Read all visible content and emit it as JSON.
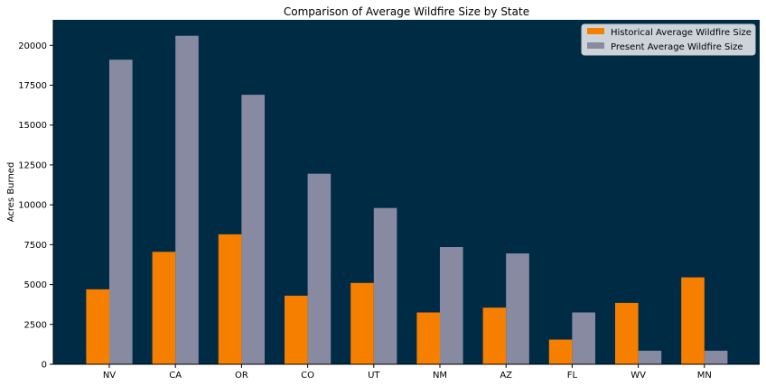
{
  "chart_data": {
    "type": "bar",
    "title": "Comparison of Average Wildfire Size by State",
    "xlabel": "",
    "ylabel": "Acres Burned",
    "categories": [
      "NV",
      "CA",
      "OR",
      "CO",
      "UT",
      "NM",
      "AZ",
      "FL",
      "WV",
      "MN"
    ],
    "series": [
      {
        "name": "Historical Average Wildfire Size",
        "color": "#f77f00",
        "values": [
          4700,
          7050,
          8150,
          4300,
          5100,
          3250,
          3550,
          1550,
          3850,
          5450
        ]
      },
      {
        "name": "Present Average Wildfire Size",
        "color": "#888aa2",
        "values": [
          19100,
          20600,
          16900,
          11950,
          9800,
          7350,
          6950,
          3250,
          850,
          850
        ]
      }
    ],
    "ylim": [
      0,
      21600
    ],
    "yticks": [
      0,
      2500,
      5000,
      7500,
      10000,
      12500,
      15000,
      17500,
      20000
    ],
    "background": "#002b45",
    "grid": false,
    "legend_position": "top-right"
  }
}
